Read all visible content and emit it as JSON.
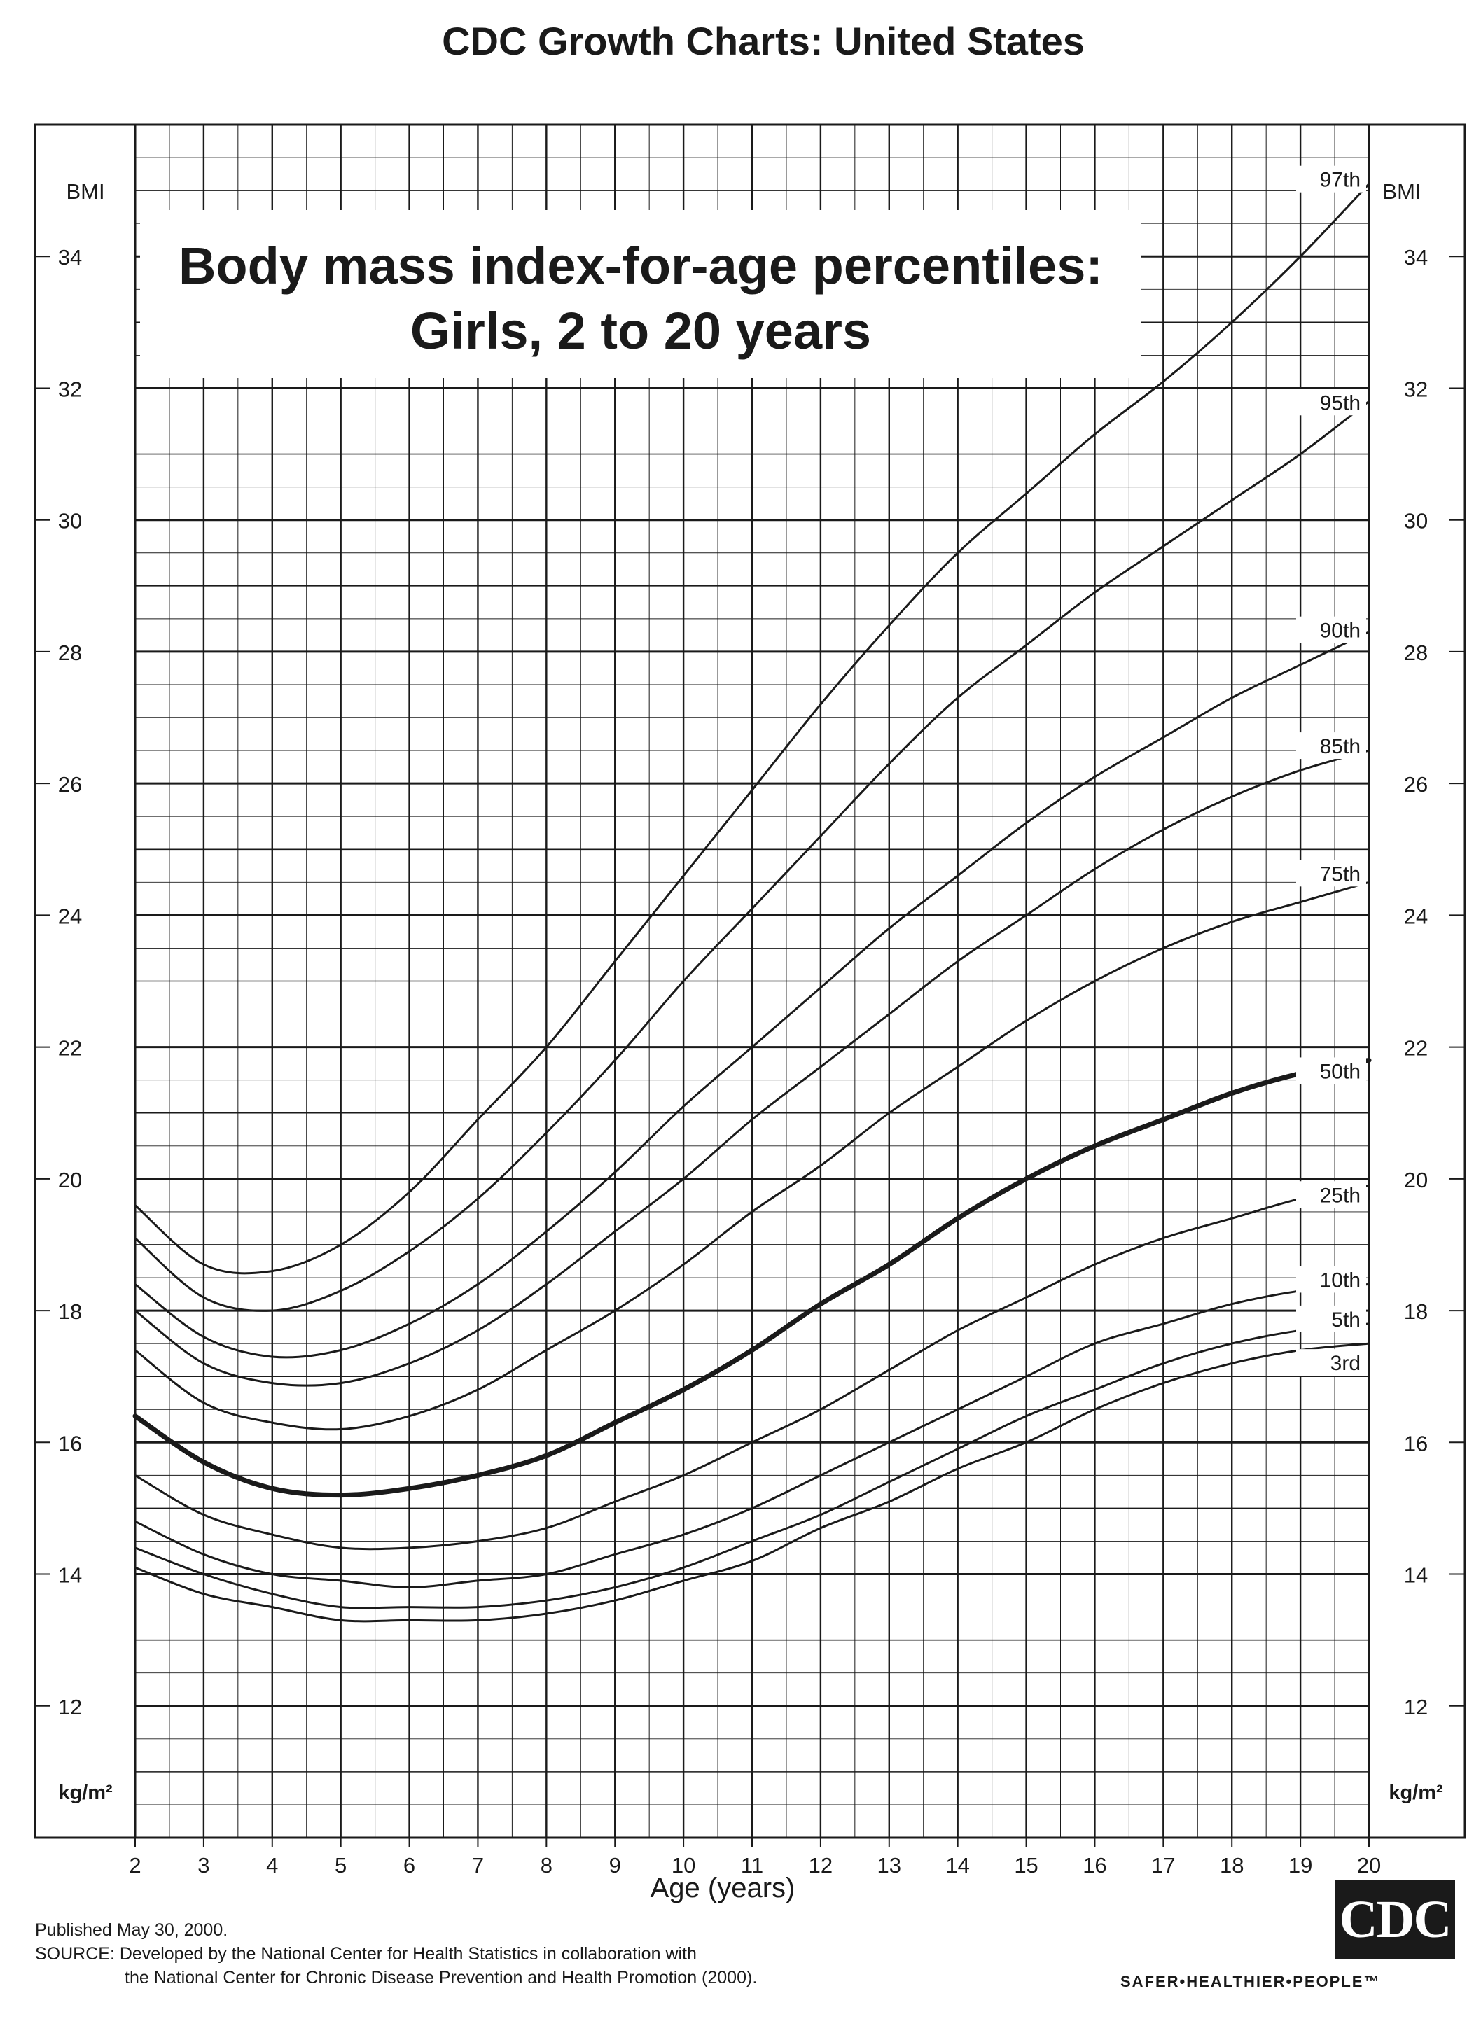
{
  "header": {
    "main_title": "CDC Growth Charts: United States"
  },
  "chart_data": {
    "type": "line",
    "title": "Body mass index-for-age percentiles:",
    "subtitle": "Girls, 2 to 20 years",
    "xlabel": "Age (years)",
    "ylabel": "BMI",
    "yunit": "kg/m²",
    "xlim": [
      2,
      20
    ],
    "ylim": [
      10,
      36
    ],
    "xticks": [
      2,
      3,
      4,
      5,
      6,
      7,
      8,
      9,
      10,
      11,
      12,
      13,
      14,
      15,
      16,
      17,
      18,
      19,
      20
    ],
    "yticks": [
      12,
      14,
      16,
      18,
      20,
      22,
      24,
      26,
      28,
      30,
      32,
      34
    ],
    "grid": true,
    "x": [
      2,
      3,
      4,
      5,
      6,
      7,
      8,
      9,
      10,
      11,
      12,
      13,
      14,
      15,
      16,
      17,
      18,
      19,
      20
    ],
    "series": [
      {
        "name": "97th",
        "values": [
          19.6,
          18.7,
          18.6,
          19.0,
          19.8,
          20.9,
          22.0,
          23.3,
          24.6,
          25.9,
          27.2,
          28.4,
          29.5,
          30.4,
          31.3,
          32.1,
          33.0,
          34.0,
          35.1
        ]
      },
      {
        "name": "95th",
        "values": [
          19.1,
          18.2,
          18.0,
          18.3,
          18.9,
          19.7,
          20.7,
          21.8,
          23.0,
          24.1,
          25.2,
          26.3,
          27.3,
          28.1,
          28.9,
          29.6,
          30.3,
          31.0,
          31.8
        ]
      },
      {
        "name": "90th",
        "values": [
          18.4,
          17.6,
          17.3,
          17.4,
          17.8,
          18.4,
          19.2,
          20.1,
          21.1,
          22.0,
          22.9,
          23.8,
          24.6,
          25.4,
          26.1,
          26.7,
          27.3,
          27.8,
          28.3
        ]
      },
      {
        "name": "85th",
        "values": [
          18.0,
          17.2,
          16.9,
          16.9,
          17.2,
          17.7,
          18.4,
          19.2,
          20.0,
          20.9,
          21.7,
          22.5,
          23.3,
          24.0,
          24.7,
          25.3,
          25.8,
          26.2,
          26.5
        ]
      },
      {
        "name": "75th",
        "values": [
          17.4,
          16.6,
          16.3,
          16.2,
          16.4,
          16.8,
          17.4,
          18.0,
          18.7,
          19.5,
          20.2,
          21.0,
          21.7,
          22.4,
          23.0,
          23.5,
          23.9,
          24.2,
          24.5
        ]
      },
      {
        "name": "50th",
        "values": [
          16.4,
          15.7,
          15.3,
          15.2,
          15.3,
          15.5,
          15.8,
          16.3,
          16.8,
          17.4,
          18.1,
          18.7,
          19.4,
          20.0,
          20.5,
          20.9,
          21.3,
          21.6,
          21.8
        ]
      },
      {
        "name": "25th",
        "values": [
          15.5,
          14.9,
          14.6,
          14.4,
          14.4,
          14.5,
          14.7,
          15.1,
          15.5,
          16.0,
          16.5,
          17.1,
          17.7,
          18.2,
          18.7,
          19.1,
          19.4,
          19.7,
          19.9
        ]
      },
      {
        "name": "10th",
        "values": [
          14.8,
          14.3,
          14.0,
          13.9,
          13.8,
          13.9,
          14.0,
          14.3,
          14.6,
          15.0,
          15.5,
          16.0,
          16.5,
          17.0,
          17.5,
          17.8,
          18.1,
          18.3,
          18.4
        ]
      },
      {
        "name": "5th",
        "values": [
          14.4,
          14.0,
          13.7,
          13.5,
          13.5,
          13.5,
          13.6,
          13.8,
          14.1,
          14.5,
          14.9,
          15.4,
          15.9,
          16.4,
          16.8,
          17.2,
          17.5,
          17.7,
          17.8
        ]
      },
      {
        "name": "3rd",
        "values": [
          14.1,
          13.7,
          13.5,
          13.3,
          13.3,
          13.3,
          13.4,
          13.6,
          13.9,
          14.2,
          14.7,
          15.1,
          15.6,
          16.0,
          16.5,
          16.9,
          17.2,
          17.4,
          17.5
        ]
      }
    ],
    "emphasized_series": "50th",
    "line_color": "#1a1a1a"
  },
  "footer": {
    "published": "Published May 30, 2000.",
    "source_line1": "SOURCE: Developed by the National Center for Health Statistics in collaboration with",
    "source_line2": "the National Center for Chronic Disease Prevention and Health Promotion (2000).",
    "logo_text": "CDC",
    "tagline": "SAFER•HEALTHIER•PEOPLE™"
  }
}
